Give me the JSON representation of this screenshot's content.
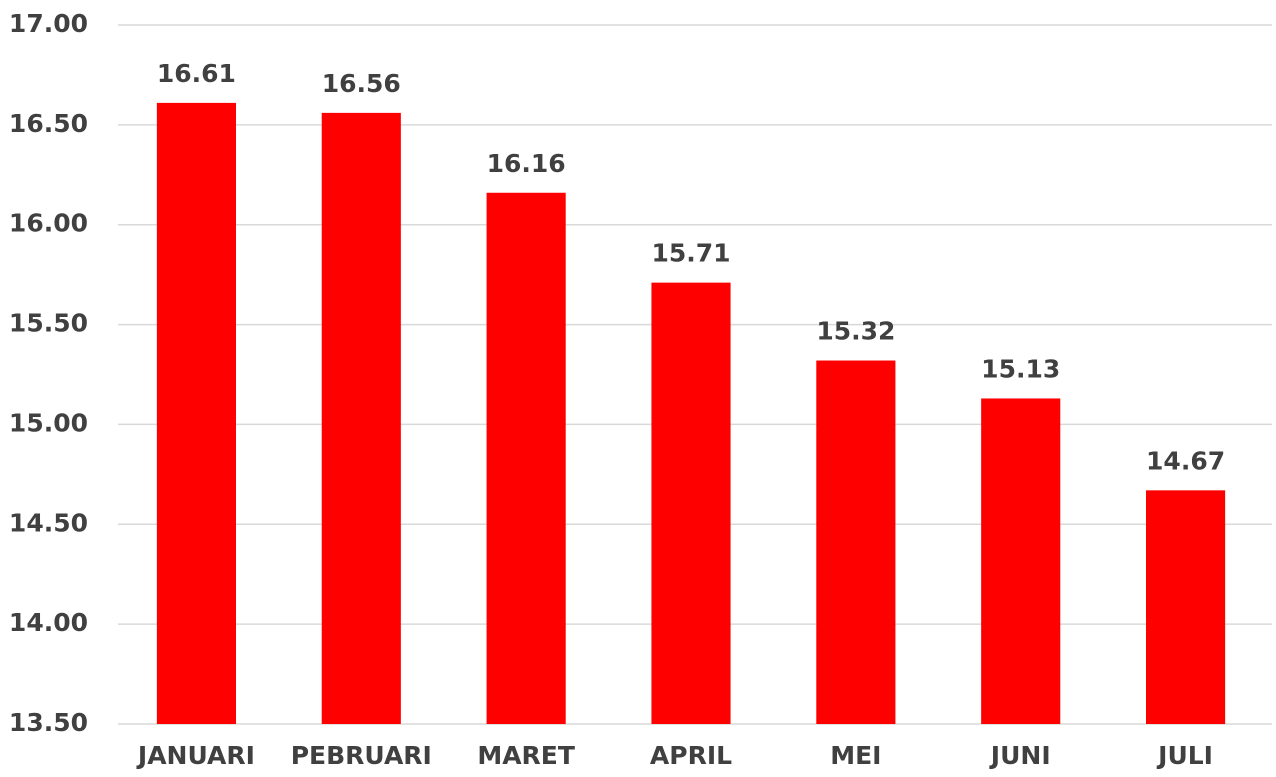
{
  "chart_data": {
    "type": "bar",
    "categories": [
      "JANUARI",
      "PEBRUARI",
      "MARET",
      "APRIL",
      "MEI",
      "JUNI",
      "JULI"
    ],
    "values": [
      16.61,
      16.56,
      16.16,
      15.71,
      15.32,
      15.13,
      14.67
    ],
    "color": "#ff0000",
    "ylim": [
      13.5,
      17
    ],
    "yticks": [
      {
        "value": 13.5,
        "label": "13.50"
      },
      {
        "value": 14,
        "label": "14.00"
      },
      {
        "value": 14.5,
        "label": "14.50"
      },
      {
        "value": 15,
        "label": "15.00"
      },
      {
        "value": 15.5,
        "label": "15.50"
      },
      {
        "value": 16,
        "label": "16.00"
      },
      {
        "value": 16.5,
        "label": "16.50"
      },
      {
        "value": 17,
        "label": "17.00"
      }
    ],
    "grid": true
  }
}
